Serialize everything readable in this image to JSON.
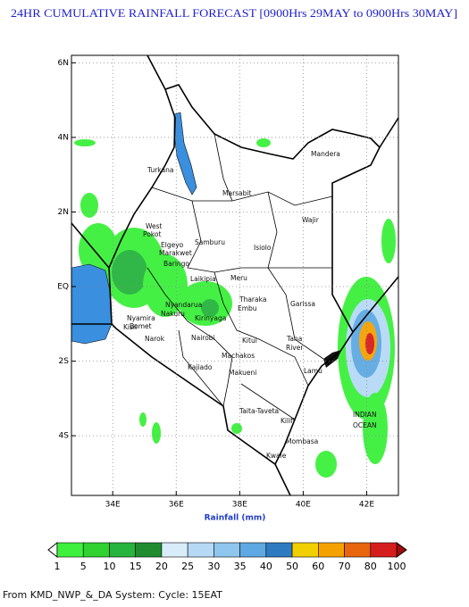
{
  "title": "24HR CUMULATIVE RAINFALL FORECAST [0900Hrs 29MAY to 0900Hrs 30MAY]",
  "map": {
    "lon_range": [
      32.7,
      43.0
    ],
    "lat_range": [
      -5.6,
      6.2
    ],
    "lon_ticks": [
      {
        "value": 34,
        "label": "34E"
      },
      {
        "value": 36,
        "label": "36E"
      },
      {
        "value": 38,
        "label": "38E"
      },
      {
        "value": 40,
        "label": "40E"
      },
      {
        "value": 42,
        "label": "42E"
      }
    ],
    "lat_ticks": [
      {
        "value": 6,
        "label": "6N"
      },
      {
        "value": 4,
        "label": "4N"
      },
      {
        "value": 2,
        "label": "2N"
      },
      {
        "value": 0,
        "label": "EQ"
      },
      {
        "value": -2,
        "label": "2S"
      },
      {
        "value": -4,
        "label": "4S"
      }
    ],
    "grid": true,
    "places": [
      "Turkana",
      "Mandera",
      "Marsabit",
      "Wajir",
      "West",
      "Pokot",
      "Samburu",
      "Isiolo",
      "Elgeyo",
      "Marakwet",
      "Baringo",
      "Laikipia",
      "Meru",
      "Tharaka",
      "Embu",
      "Kirinyaga",
      "Kitui",
      "Garissa",
      "Tana",
      "River",
      "Lamu",
      "Nairobi",
      "Machakos",
      "Kajiado",
      "Makueni",
      "Narok",
      "Bomet",
      "Nyandarua",
      "Nakuru",
      "Nyamira",
      "Kisii",
      "Taita-Taveta",
      "Kilifi",
      "Mombasa",
      "Kwale",
      "INDIAN",
      "OCEAN"
    ]
  },
  "colorbar": {
    "label": "Rainfall (mm)",
    "levels": [
      1,
      5,
      10,
      15,
      20,
      25,
      30,
      35,
      40,
      50,
      60,
      70,
      80,
      100
    ],
    "colors": [
      "#3cf03c",
      "#2fd22f",
      "#27b43e",
      "#1f8c30",
      "#d8ecfa",
      "#b6daf5",
      "#8fc6ee",
      "#5ea9e3",
      "#2f7bc1",
      "#f2d000",
      "#f5a200",
      "#e8650f",
      "#d61d1d"
    ],
    "under_color": "#ffffff",
    "over_color": "#9e0e0e"
  },
  "footer": "From KMD_NWP_&_DA System: Cycle: 15EAT"
}
